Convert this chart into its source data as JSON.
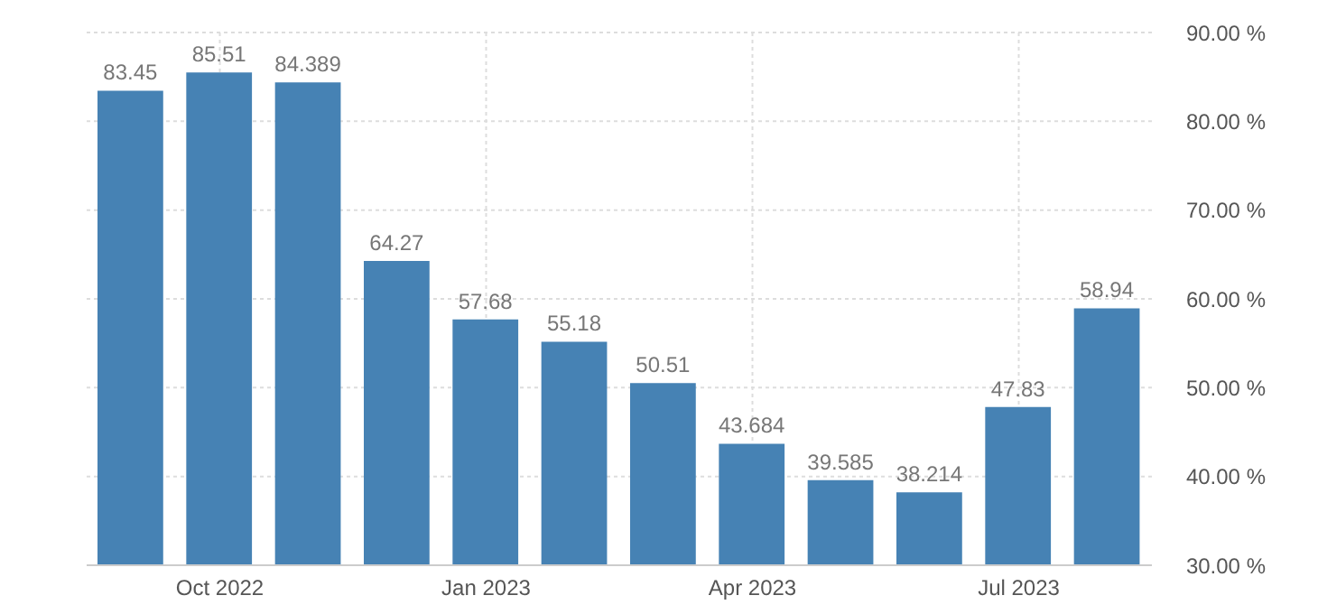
{
  "chart_data": {
    "type": "bar",
    "categories": [
      null,
      "Oct 2022",
      null,
      null,
      "Jan 2023",
      null,
      null,
      "Apr 2023",
      null,
      null,
      "Jul 2023",
      null
    ],
    "values": [
      83.45,
      85.51,
      84.389,
      64.27,
      57.68,
      55.18,
      50.51,
      43.684,
      39.585,
      38.214,
      47.83,
      58.94
    ],
    "value_labels": [
      "83.45",
      "85.51",
      "84.389",
      "64.27",
      "57.68",
      "55.18",
      "50.51",
      "43.684",
      "39.585",
      "38.214",
      "47.83",
      "58.94"
    ],
    "color": "#4682b4",
    "ylim": [
      30,
      90
    ],
    "yticks": [
      {
        "value": 30,
        "label": "30.00 %"
      },
      {
        "value": 40,
        "label": "40.00 %"
      },
      {
        "value": 50,
        "label": "50.00 %"
      },
      {
        "value": 60,
        "label": "60.00 %"
      },
      {
        "value": 70,
        "label": "70.00 %"
      },
      {
        "value": 80,
        "label": "80.00 %"
      },
      {
        "value": 90,
        "label": "90.00 %"
      }
    ],
    "grid": true
  }
}
